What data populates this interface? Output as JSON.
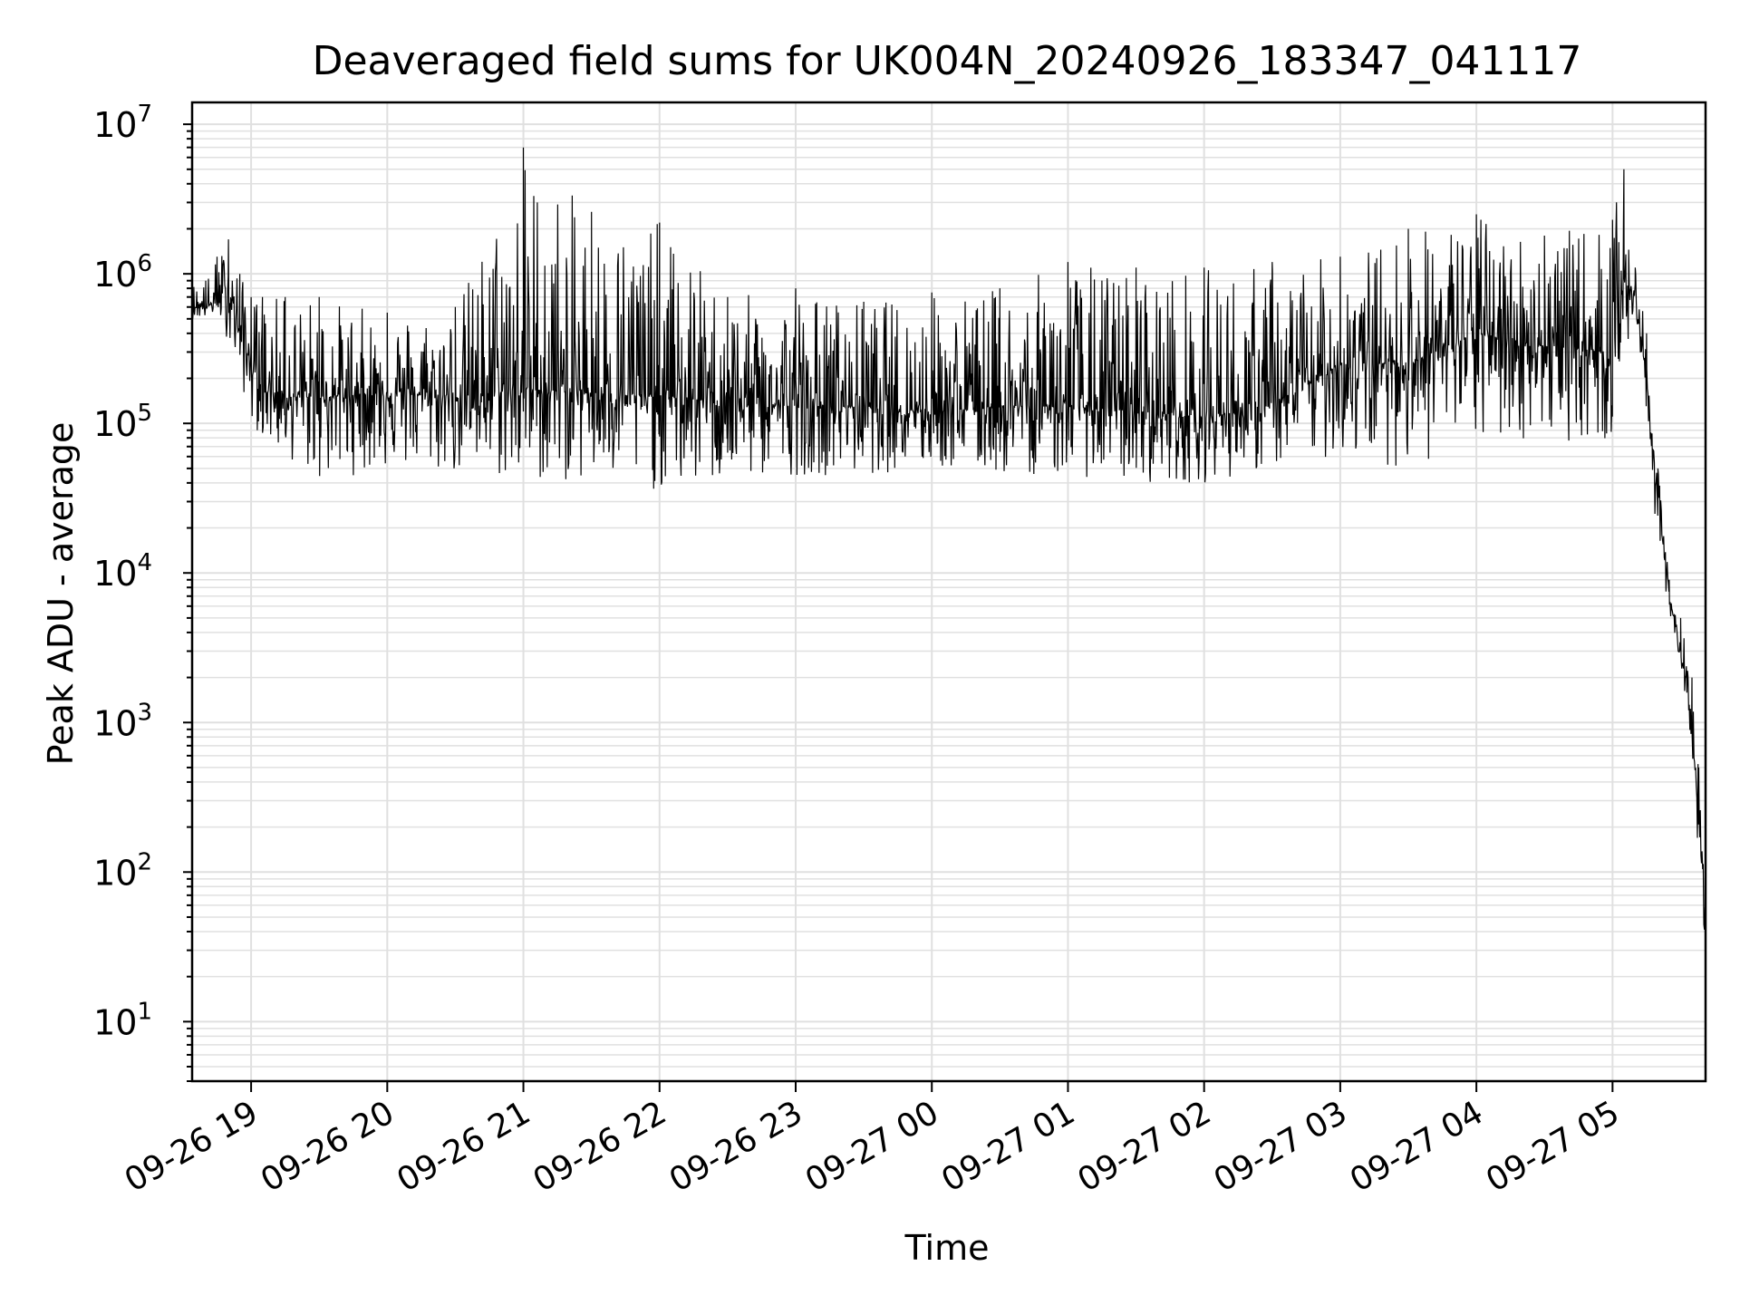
{
  "chart_data": {
    "type": "line",
    "title": "Deaveraged field sums for UK004N_20240926_183347_041117",
    "xlabel": "Time",
    "ylabel": "Peak ADU - average",
    "y_scale": "log",
    "ylim": [
      4,
      14000000
    ],
    "xlim": [
      "2024-09-26 18:34",
      "2024-09-27 05:41"
    ],
    "grid": true,
    "line_color": "#000000",
    "grid_color": "#e0e0e0",
    "x_ticks": [
      {
        "value": "2024-09-26 19:00",
        "label": "09-26 19"
      },
      {
        "value": "2024-09-26 20:00",
        "label": "09-26 20"
      },
      {
        "value": "2024-09-26 21:00",
        "label": "09-26 21"
      },
      {
        "value": "2024-09-26 22:00",
        "label": "09-26 22"
      },
      {
        "value": "2024-09-26 23:00",
        "label": "09-26 23"
      },
      {
        "value": "2024-09-27 00:00",
        "label": "09-27 00"
      },
      {
        "value": "2024-09-27 01:00",
        "label": "09-27 01"
      },
      {
        "value": "2024-09-27 02:00",
        "label": "09-27 02"
      },
      {
        "value": "2024-09-27 03:00",
        "label": "09-27 03"
      },
      {
        "value": "2024-09-27 04:00",
        "label": "09-27 04"
      },
      {
        "value": "2024-09-27 05:00",
        "label": "09-27 05"
      }
    ],
    "y_ticks": [
      {
        "value": 10,
        "base": "10",
        "exp": "1"
      },
      {
        "value": 100,
        "base": "10",
        "exp": "2"
      },
      {
        "value": 1000,
        "base": "10",
        "exp": "3"
      },
      {
        "value": 10000,
        "base": "10",
        "exp": "4"
      },
      {
        "value": 100000,
        "base": "10",
        "exp": "5"
      },
      {
        "value": 1000000,
        "base": "10",
        "exp": "6"
      },
      {
        "value": 10000000,
        "base": "10",
        "exp": "7"
      }
    ],
    "series": [
      {
        "description": "noisy trace: median level and peak/trough envelope read from the plot",
        "x": [
          "2024-09-26 18:34",
          "2024-09-26 18:40",
          "2024-09-26 18:45",
          "2024-09-26 18:50",
          "2024-09-26 18:55",
          "2024-09-26 19:00",
          "2024-09-26 19:05",
          "2024-09-26 19:15",
          "2024-09-26 19:30",
          "2024-09-26 20:00",
          "2024-09-26 20:30",
          "2024-09-26 21:00",
          "2024-09-26 21:30",
          "2024-09-26 22:00",
          "2024-09-26 22:30",
          "2024-09-26 23:00",
          "2024-09-26 23:30",
          "2024-09-27 00:00",
          "2024-09-27 00:30",
          "2024-09-27 01:00",
          "2024-09-27 01:30",
          "2024-09-27 02:00",
          "2024-09-27 02:30",
          "2024-09-27 03:00",
          "2024-09-27 03:30",
          "2024-09-27 04:00",
          "2024-09-27 04:30",
          "2024-09-27 05:00",
          "2024-09-27 05:05",
          "2024-09-27 05:10",
          "2024-09-27 05:15",
          "2024-09-27 05:20",
          "2024-09-27 05:25",
          "2024-09-27 05:30",
          "2024-09-27 05:35",
          "2024-09-27 05:38",
          "2024-09-27 05:41"
        ],
        "median": [
          600000,
          600000,
          650000,
          800000,
          400000,
          250000,
          170000,
          150000,
          150000,
          160000,
          150000,
          170000,
          160000,
          150000,
          140000,
          130000,
          130000,
          120000,
          130000,
          130000,
          120000,
          110000,
          130000,
          250000,
          250000,
          400000,
          330000,
          300000,
          900000,
          700000,
          200000,
          30000,
          7000,
          3000,
          1000,
          200,
          50
        ],
        "high": [
          900000,
          900000,
          1300000,
          1700000,
          1000000,
          700000,
          700000,
          700000,
          700000,
          550000,
          600000,
          7000000,
          2600000,
          2200000,
          700000,
          800000,
          650000,
          750000,
          800000,
          1200000,
          1100000,
          1100000,
          1200000,
          1300000,
          2000000,
          2500000,
          1800000,
          2300000,
          5000000,
          1100000,
          400000,
          50000,
          9000,
          5000,
          2000,
          500,
          100
        ],
        "low": [
          500000,
          500000,
          550000,
          350000,
          200000,
          100000,
          80000,
          60000,
          40000,
          50000,
          45000,
          40000,
          40000,
          35000,
          40000,
          45000,
          45000,
          50000,
          45000,
          45000,
          40000,
          40000,
          50000,
          60000,
          50000,
          70000,
          80000,
          70000,
          300000,
          400000,
          100000,
          15000,
          4000,
          2500,
          700,
          100,
          30
        ]
      }
    ]
  }
}
